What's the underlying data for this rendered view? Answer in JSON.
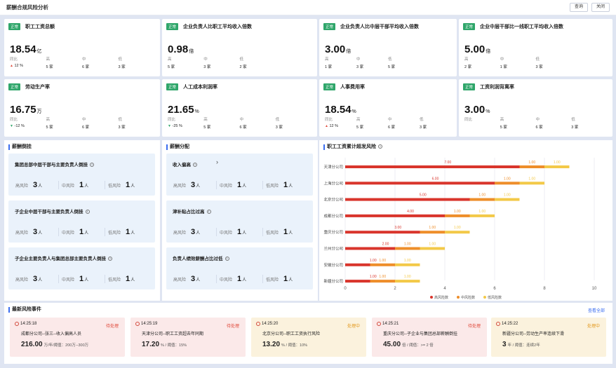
{
  "header": {
    "title": "薪酬合规风险分析",
    "query_btn": "查询",
    "close_btn": "关闭"
  },
  "kpis": [
    {
      "status": "正常",
      "title": "职工工资总额",
      "value": "18.54",
      "unit": "亿",
      "yoy_label": "同比",
      "yoy": "12 %",
      "yoy_dir": "up",
      "high_label": "高",
      "high": "5 家",
      "mid_label": "中",
      "mid": "6 家",
      "low_label": "低",
      "low": "3 家"
    },
    {
      "status": "正常",
      "title": "企业负责人比职工平均收入倍数",
      "value": "0.98",
      "unit": "倍",
      "yoy_label": "高",
      "yoy": "5 家",
      "yoy_dir": "",
      "high_label": "中",
      "high": "3 家",
      "mid_label": "低",
      "mid": "2 家",
      "low_label": "",
      "low": ""
    },
    {
      "status": "正常",
      "title": "企业负责人比中层干部平均收入倍数",
      "value": "3.00",
      "unit": "倍",
      "yoy_label": "高",
      "yoy": "1 家",
      "yoy_dir": "",
      "high_label": "中",
      "high": "3 家",
      "mid_label": "低",
      "mid": "5 家",
      "low_label": "",
      "low": ""
    },
    {
      "status": "正常",
      "title": "企业中层干部比一线职工平均收入倍数",
      "value": "5.00",
      "unit": "倍",
      "yoy_label": "高",
      "yoy": "2 家",
      "yoy_dir": "",
      "high_label": "中",
      "high": "1 家",
      "mid_label": "低",
      "mid": "3 家",
      "low_label": "",
      "low": ""
    },
    {
      "status": "正常",
      "title": "劳动生产率",
      "value": "16.75",
      "unit": "万",
      "yoy_label": "同比",
      "yoy": "-12 %",
      "yoy_dir": "down",
      "high_label": "高",
      "high": "5 家",
      "mid_label": "中",
      "mid": "6 家",
      "low_label": "低",
      "low": "3 家"
    },
    {
      "status": "正常",
      "title": "人工成本利润率",
      "value": "21.65",
      "unit": "%",
      "yoy_label": "同比",
      "yoy": "-25 %",
      "yoy_dir": "down",
      "high_label": "高",
      "high": "5 家",
      "mid_label": "中",
      "mid": "6 家",
      "low_label": "低",
      "low": "3 家"
    },
    {
      "status": "正常",
      "title": "人事费用率",
      "value": "18.54",
      "unit": "%",
      "yoy_label": "同比",
      "yoy": "12 %",
      "yoy_dir": "up",
      "high_label": "高",
      "high": "5 家",
      "mid_label": "中",
      "mid": "6 家",
      "low_label": "低",
      "low": "3 家"
    },
    {
      "status": "正常",
      "title": "工资利润背离率",
      "value": "3.00",
      "unit": "%",
      "yoy_label": "同比",
      "yoy": "",
      "yoy_dir": "",
      "high_label": "高",
      "high": "5 家",
      "mid_label": "中",
      "mid": "6 家",
      "low_label": "低",
      "low": "3 家"
    }
  ],
  "skew": {
    "title": "薪酬倒挂",
    "items": [
      {
        "title": "集团总部中层干部与主要负责人倒挂",
        "high": "3",
        "mid": "1",
        "low": "1"
      },
      {
        "title": "子企业中层干部与主要负责人倒挂",
        "high": "3",
        "mid": "1",
        "low": "1"
      },
      {
        "title": "子企业主要负责人与集团总部主要负责人倒挂",
        "high": "3",
        "mid": "1",
        "low": "1"
      }
    ],
    "high_label": "高风险",
    "mid_label": "中风险",
    "low_label": "低风险",
    "unit": "人"
  },
  "distribution": {
    "title": "薪酬分配",
    "items": [
      {
        "title": "收入偏高",
        "high": "3",
        "mid": "1",
        "low": "1"
      },
      {
        "title": "津补贴占比过高",
        "high": "3",
        "mid": "1",
        "low": "1"
      },
      {
        "title": "负责人绩效薪酬占比过低",
        "high": "3",
        "mid": "1",
        "low": "1"
      }
    ]
  },
  "chart_data": {
    "type": "bar",
    "orientation": "horizontal",
    "stacked": true,
    "title": "职工工资累计超发风险",
    "categories": [
      "天津分公司",
      "上海分公司",
      "北京分公司",
      "成都分公司",
      "重庆分公司",
      "兰州分公司",
      "安徽分公司",
      "新疆分公司"
    ],
    "series": [
      {
        "name": "高风险数",
        "color": "#d9352c",
        "values": [
          7,
          6,
          5,
          4,
          3,
          2,
          1,
          1
        ]
      },
      {
        "name": "中风险数",
        "color": "#ee8e2a",
        "values": [
          1,
          1,
          1,
          1,
          1,
          1,
          1,
          1
        ]
      },
      {
        "name": "低风险数",
        "color": "#f3c948",
        "values": [
          1,
          1,
          1,
          1,
          1,
          1,
          1,
          1
        ]
      }
    ],
    "xlim": [
      0,
      10
    ],
    "xticks": [
      0,
      2,
      4,
      6,
      8,
      10
    ],
    "legend": "bottom",
    "grid": true
  },
  "events": {
    "title": "最新风险事件",
    "view_all": "查看全部",
    "items": [
      {
        "time": "14:25:18",
        "status": "待处理",
        "tone": "red",
        "desc": "成都分公司--张三--收入偏高人员",
        "value": "216.00",
        "sub": "万/年/阈值：200万--300万"
      },
      {
        "time": "14:25:19",
        "status": "待处理",
        "tone": "red",
        "desc": "天津分公司--职工工资超去年同期",
        "value": "17.20",
        "sub": "% / 阈值：15%"
      },
      {
        "time": "14:25:20",
        "status": "处理中",
        "tone": "yel",
        "desc": "北京分公司--职工工资执行风险",
        "value": "13.20",
        "sub": "% / 阈值：10%"
      },
      {
        "time": "14:25:21",
        "status": "待处理",
        "tone": "red",
        "desc": "重庆分公司--子企业与集团总部薪酬倒挂",
        "value": "45.00",
        "sub": "倍 / 阈值：>= 2 倍"
      },
      {
        "time": "14:25:22",
        "status": "处理中",
        "tone": "yel",
        "desc": "新疆分公司--劳动生产率连续下滑",
        "value": "3",
        "sub": "年 / 阈值：连续2年"
      }
    ]
  }
}
